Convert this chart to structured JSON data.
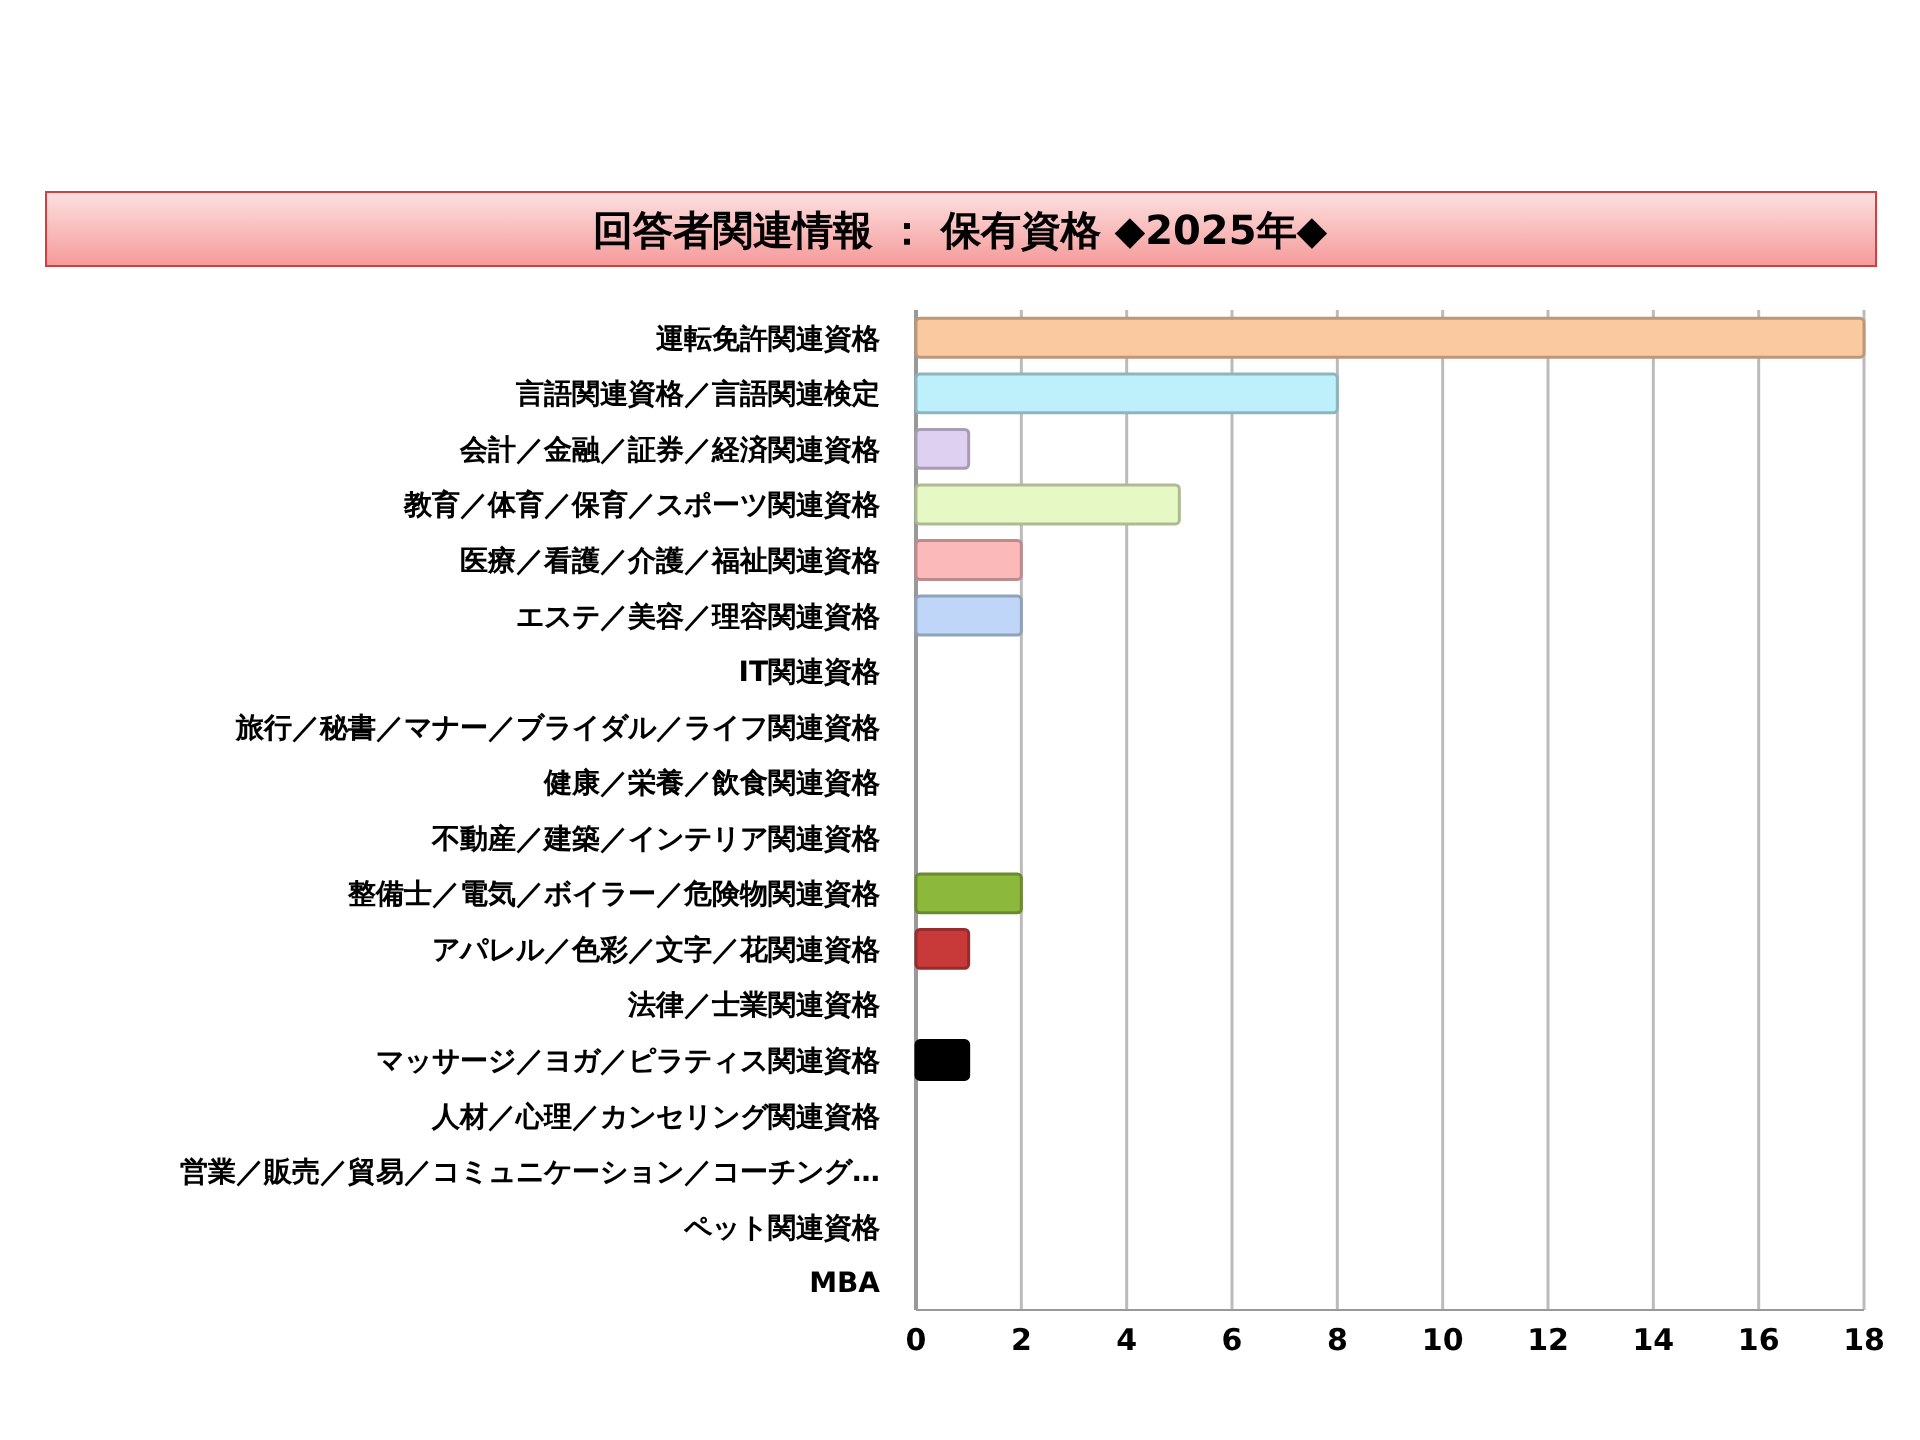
{
  "chart_data": {
    "type": "bar",
    "orientation": "horizontal",
    "title": "回答者関連情報 ： 保有資格 ◆2025年◆",
    "categories": [
      "運転免許関連資格",
      "言語関連資格／言語関連検定",
      "会計／金融／証券／経済関連資格",
      "教育／体育／保育／スポーツ関連資格",
      "医療／看護／介護／福祉関連資格",
      "エステ／美容／理容関連資格",
      "IT関連資格",
      "旅行／秘書／マナー／ブライダル／ライフ関連資格",
      "健康／栄養／飲食関連資格",
      "不動産／建築／インテリア関連資格",
      "整備士／電気／ボイラー／危険物関連資格",
      "アパレル／色彩／文字／花関連資格",
      "法律／士業関連資格",
      "マッサージ／ヨガ／ピラティス関連資格",
      "人材／心理／カンセリング関連資格",
      "営業／販売／貿易／コミュニケーション／コーチング…",
      "ペット関連資格",
      "MBA"
    ],
    "values": [
      18,
      8,
      1,
      5,
      2,
      2,
      0,
      0,
      0,
      0,
      2,
      1,
      0,
      1,
      0,
      0,
      0,
      0
    ],
    "colors": [
      "#fbc9a0",
      "#bdf0fb",
      "#ddd0f0",
      "#e6f9c4",
      "#fbb9b9",
      "#c0d6f8",
      "#404040",
      "#a0601c",
      "#1a7a8c",
      "#5a3a80",
      "#8cb83c",
      "#c83a3a",
      "#2a4a7a",
      "#000000",
      "#f9a060",
      "#5ac0e0",
      "#9a7ac8",
      "#9cc060"
    ],
    "xlim": [
      0,
      18
    ],
    "xticks": [
      0,
      2,
      4,
      6,
      8,
      10,
      12,
      14,
      16,
      18
    ],
    "grid": "x"
  }
}
